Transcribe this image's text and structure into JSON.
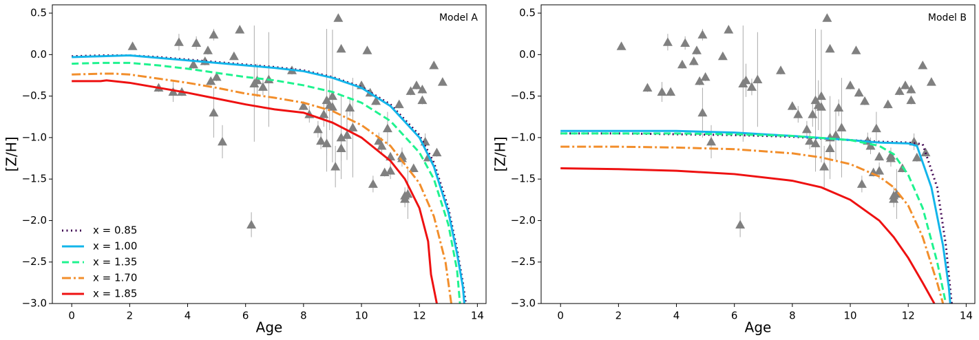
{
  "chart_data": [
    {
      "type": "line",
      "annotation": "Model A",
      "xlabel": "Age",
      "ylabel": "[Z/H]",
      "xlim": [
        -0.67,
        14.3
      ],
      "ylim": [
        -3.0,
        0.6
      ],
      "xticks": [
        0,
        2,
        4,
        6,
        8,
        10,
        12,
        14
      ],
      "yticks": [
        {
          "value": -3.0,
          "label": "−3.0"
        },
        {
          "value": -2.5,
          "label": "−2.5"
        },
        {
          "value": -2.0,
          "label": "−2.0"
        },
        {
          "value": -1.5,
          "label": "−1.5"
        },
        {
          "value": -1.0,
          "label": "−1.0"
        },
        {
          "value": -0.5,
          "label": "−0.5"
        },
        {
          "value": 0.0,
          "label": "0.0"
        },
        0.5
      ],
      "legend": "lower left",
      "series": [
        {
          "type": "scatter",
          "color": "#808080",
          "x": [
            2.1,
            3.0,
            3.5,
            3.7,
            3.8,
            4.2,
            4.3,
            4.6,
            4.7,
            4.8,
            4.9,
            4.9,
            5.0,
            5.2,
            5.6,
            5.8,
            6.2,
            6.3,
            6.4,
            6.6,
            6.8,
            7.6,
            8.0,
            8.2,
            8.5,
            8.6,
            8.7,
            8.8,
            8.8,
            8.9,
            9.0,
            9.0,
            9.1,
            9.2,
            9.3,
            9.3,
            9.3,
            9.5,
            9.6,
            9.7,
            10.0,
            10.2,
            10.3,
            10.4,
            10.5,
            10.6,
            10.7,
            10.8,
            10.9,
            11.0,
            11.0,
            11.3,
            11.4,
            11.4,
            11.5,
            11.5,
            11.6,
            11.7,
            11.8,
            11.9,
            12.1,
            12.1,
            12.2,
            12.3,
            12.5,
            12.6,
            12.8
          ],
          "values": [
            0.1,
            -0.4,
            -0.45,
            0.15,
            -0.45,
            -0.12,
            0.14,
            -0.08,
            0.05,
            -0.32,
            0.24,
            -0.7,
            -0.27,
            -1.05,
            -0.02,
            0.3,
            -2.05,
            -0.35,
            -0.31,
            -0.39,
            -0.3,
            -0.19,
            -0.62,
            -0.72,
            -0.9,
            -1.04,
            -0.72,
            -1.07,
            -0.55,
            -0.61,
            -0.63,
            -0.5,
            -1.35,
            0.44,
            0.07,
            -1.0,
            -1.13,
            -0.97,
            -0.64,
            -0.88,
            -0.37,
            0.05,
            -0.46,
            -1.56,
            -0.56,
            -1.04,
            -1.1,
            -1.42,
            -0.89,
            -1.23,
            -1.4,
            -0.6,
            -1.22,
            -1.25,
            -1.74,
            -1.7,
            -1.68,
            -0.44,
            -1.37,
            -0.37,
            -0.42,
            -0.55,
            -1.05,
            -1.24,
            -0.13,
            -1.18,
            -0.33
          ],
          "yerr": [
            0.03,
            0.05,
            0.12,
            0.1,
            0.05,
            0.05,
            0.08,
            0.05,
            0.05,
            0.05,
            0.07,
            0.3,
            0.05,
            0.2,
            0.03,
            0.03,
            0.15,
            0.7,
            0.2,
            0.1,
            0.57,
            0.05,
            0.05,
            0.1,
            0.1,
            0.1,
            0.15,
            0.15,
            0.86,
            0.3,
            0.3,
            0.8,
            0.25,
            0.03,
            0.03,
            0.5,
            0.15,
            0.3,
            0.1,
            0.6,
            0.05,
            0.03,
            0.05,
            0.1,
            0.05,
            0.1,
            0.1,
            0.05,
            0.2,
            0.05,
            0.1,
            0.05,
            0.1,
            0.1,
            0.1,
            0.1,
            0.3,
            0.05,
            0.05,
            0.05,
            0.05,
            0.05,
            0.1,
            0.05,
            0.03,
            0.05,
            0.03
          ]
        },
        {
          "name": "x = 0.85",
          "color": "#3d0050",
          "linestyle": "dotted",
          "x": [
            0,
            1,
            2,
            3,
            4,
            5,
            6,
            7,
            8,
            9,
            10,
            11,
            12,
            12.5,
            13,
            13.3,
            13.5,
            13.6
          ],
          "values": [
            -0.02,
            -0.01,
            -0.01,
            -0.03,
            -0.06,
            -0.09,
            -0.12,
            -0.15,
            -0.19,
            -0.27,
            -0.39,
            -0.6,
            -0.97,
            -1.3,
            -1.85,
            -2.35,
            -2.75,
            -3.0
          ]
        },
        {
          "name": "x = 1.00",
          "color": "#12b5ea",
          "linestyle": "solid",
          "x": [
            0,
            1,
            2,
            3,
            4,
            5,
            6,
            7,
            8,
            9,
            10,
            11,
            12,
            12.5,
            13,
            13.3,
            13.5,
            13.55
          ],
          "values": [
            -0.03,
            -0.02,
            -0.01,
            -0.04,
            -0.07,
            -0.1,
            -0.13,
            -0.16,
            -0.2,
            -0.28,
            -0.4,
            -0.62,
            -1.0,
            -1.35,
            -1.9,
            -2.4,
            -2.8,
            -3.0
          ]
        },
        {
          "name": "x = 1.35",
          "color": "#1ff38f",
          "linestyle": "dashed",
          "x": [
            0,
            1,
            2,
            3,
            4,
            5,
            6,
            7,
            8,
            9,
            10,
            11,
            12,
            12.5,
            13,
            13.3,
            13.4
          ],
          "values": [
            -0.11,
            -0.1,
            -0.1,
            -0.13,
            -0.17,
            -0.22,
            -0.27,
            -0.31,
            -0.37,
            -0.45,
            -0.58,
            -0.8,
            -1.18,
            -1.5,
            -2.05,
            -2.6,
            -3.0
          ]
        },
        {
          "name": "x = 1.70",
          "color": "#f28e2b",
          "linestyle": "dashdot",
          "x": [
            0,
            1,
            1.5,
            2,
            3,
            4,
            5,
            6,
            7,
            8,
            9,
            10,
            11,
            12,
            12.5,
            12.9,
            13.1
          ],
          "values": [
            -0.24,
            -0.23,
            -0.23,
            -0.24,
            -0.29,
            -0.34,
            -0.4,
            -0.47,
            -0.52,
            -0.58,
            -0.68,
            -0.85,
            -1.1,
            -1.55,
            -1.95,
            -2.5,
            -3.0
          ]
        },
        {
          "name": "x = 1.85",
          "color": "#ee1111",
          "linestyle": "solid",
          "x": [
            0,
            1,
            1.2,
            2,
            3,
            4,
            5,
            6,
            7,
            8,
            9,
            10,
            11,
            11.5,
            12,
            12.3,
            12.4,
            12.6
          ],
          "values": [
            -0.32,
            -0.32,
            -0.31,
            -0.34,
            -0.4,
            -0.46,
            -0.53,
            -0.6,
            -0.66,
            -0.7,
            -0.82,
            -1.0,
            -1.28,
            -1.5,
            -1.85,
            -2.25,
            -2.65,
            -3.0
          ]
        }
      ]
    },
    {
      "type": "line",
      "annotation": "Model B",
      "xlabel": "Age",
      "ylabel": "[Z/H]",
      "xlim": [
        -0.67,
        14.3
      ],
      "ylim": [
        -3.0,
        0.6
      ],
      "xticks": [
        0,
        2,
        4,
        6,
        8,
        10,
        12,
        14
      ],
      "yticks": [
        {
          "value": -3.0,
          "label": "−3.0"
        },
        {
          "value": -2.5,
          "label": "−2.5"
        },
        {
          "value": -2.0,
          "label": "−2.0"
        },
        {
          "value": -1.5,
          "label": "−1.5"
        },
        {
          "value": -1.0,
          "label": "−1.0"
        },
        {
          "value": -0.5,
          "label": "−0.5"
        },
        {
          "value": 0.0,
          "label": "0.0"
        },
        0.5
      ],
      "series": [
        {
          "type": "scatter",
          "color": "#808080",
          "x": [
            2.1,
            3.0,
            3.5,
            3.7,
            3.8,
            4.2,
            4.3,
            4.6,
            4.7,
            4.8,
            4.9,
            4.9,
            5.0,
            5.2,
            5.6,
            5.8,
            6.2,
            6.3,
            6.4,
            6.6,
            6.8,
            7.6,
            8.0,
            8.2,
            8.5,
            8.6,
            8.7,
            8.8,
            8.8,
            8.9,
            9.0,
            9.0,
            9.1,
            9.2,
            9.3,
            9.3,
            9.3,
            9.5,
            9.6,
            9.7,
            10.0,
            10.2,
            10.3,
            10.4,
            10.5,
            10.6,
            10.7,
            10.8,
            10.9,
            11.0,
            11.0,
            11.3,
            11.4,
            11.4,
            11.5,
            11.5,
            11.6,
            11.7,
            11.8,
            11.9,
            12.1,
            12.1,
            12.2,
            12.3,
            12.5,
            12.6,
            12.8
          ],
          "values": [
            0.1,
            -0.4,
            -0.45,
            0.15,
            -0.45,
            -0.12,
            0.14,
            -0.08,
            0.05,
            -0.32,
            0.24,
            -0.7,
            -0.27,
            -1.05,
            -0.02,
            0.3,
            -2.05,
            -0.35,
            -0.31,
            -0.39,
            -0.3,
            -0.19,
            -0.62,
            -0.72,
            -0.9,
            -1.04,
            -0.72,
            -1.07,
            -0.55,
            -0.61,
            -0.63,
            -0.5,
            -1.35,
            0.44,
            0.07,
            -1.0,
            -1.13,
            -0.97,
            -0.64,
            -0.88,
            -0.37,
            0.05,
            -0.46,
            -1.56,
            -0.56,
            -1.04,
            -1.1,
            -1.42,
            -0.89,
            -1.23,
            -1.4,
            -0.6,
            -1.22,
            -1.25,
            -1.74,
            -1.7,
            -1.68,
            -0.44,
            -1.37,
            -0.37,
            -0.42,
            -0.55,
            -1.05,
            -1.24,
            -0.13,
            -1.18,
            -0.33
          ],
          "yerr": [
            0.03,
            0.05,
            0.12,
            0.1,
            0.05,
            0.05,
            0.08,
            0.05,
            0.05,
            0.05,
            0.07,
            0.3,
            0.05,
            0.2,
            0.03,
            0.03,
            0.15,
            0.7,
            0.2,
            0.1,
            0.57,
            0.05,
            0.05,
            0.1,
            0.1,
            0.1,
            0.15,
            0.15,
            0.86,
            0.3,
            0.3,
            0.8,
            0.25,
            0.03,
            0.03,
            0.5,
            0.15,
            0.3,
            0.1,
            0.6,
            0.05,
            0.03,
            0.05,
            0.1,
            0.05,
            0.1,
            0.1,
            0.05,
            0.2,
            0.05,
            0.1,
            0.05,
            0.1,
            0.1,
            0.1,
            0.1,
            0.3,
            0.05,
            0.05,
            0.05,
            0.05,
            0.05,
            0.1,
            0.05,
            0.03,
            0.05,
            0.03
          ]
        },
        {
          "color": "#3d0050",
          "linestyle": "dotted",
          "x": [
            0,
            2,
            4,
            6,
            8,
            10,
            11,
            12,
            12.5,
            13,
            13.3,
            13.5
          ],
          "values": [
            -0.95,
            -0.95,
            -0.96,
            -0.97,
            -0.99,
            -1.03,
            -1.05,
            -1.06,
            -1.08,
            -1.6,
            -2.3,
            -3.0
          ]
        },
        {
          "color": "#12b5ea",
          "linestyle": "solid",
          "x": [
            0,
            2,
            4,
            6,
            8,
            10,
            11,
            12,
            12.3,
            12.8,
            13.2,
            13.4,
            13.45
          ],
          "values": [
            -0.92,
            -0.92,
            -0.92,
            -0.94,
            -0.98,
            -1.03,
            -1.06,
            -1.07,
            -1.1,
            -1.6,
            -2.3,
            -2.8,
            -3.0
          ]
        },
        {
          "color": "#1ff38f",
          "linestyle": "dashed",
          "x": [
            0,
            2,
            4,
            6,
            8,
            10,
            11,
            11.5,
            12,
            12.5,
            13,
            13.3
          ],
          "values": [
            -0.95,
            -0.95,
            -0.95,
            -0.96,
            -0.98,
            -1.03,
            -1.1,
            -1.2,
            -1.45,
            -1.85,
            -2.5,
            -3.0
          ]
        },
        {
          "color": "#f28e2b",
          "linestyle": "dashdot",
          "x": [
            0,
            2,
            4,
            6,
            8,
            9,
            10,
            11,
            11.5,
            12,
            12.5,
            13,
            13.2
          ],
          "values": [
            -1.11,
            -1.11,
            -1.12,
            -1.14,
            -1.19,
            -1.24,
            -1.32,
            -1.47,
            -1.6,
            -1.82,
            -2.2,
            -2.75,
            -3.0
          ]
        },
        {
          "color": "#ee1111",
          "linestyle": "solid",
          "x": [
            0,
            2,
            4,
            6,
            8,
            9,
            10,
            11,
            11.5,
            12,
            12.5,
            12.9
          ],
          "values": [
            -1.37,
            -1.38,
            -1.4,
            -1.44,
            -1.52,
            -1.6,
            -1.75,
            -2.0,
            -2.2,
            -2.45,
            -2.75,
            -3.0
          ]
        }
      ]
    }
  ]
}
